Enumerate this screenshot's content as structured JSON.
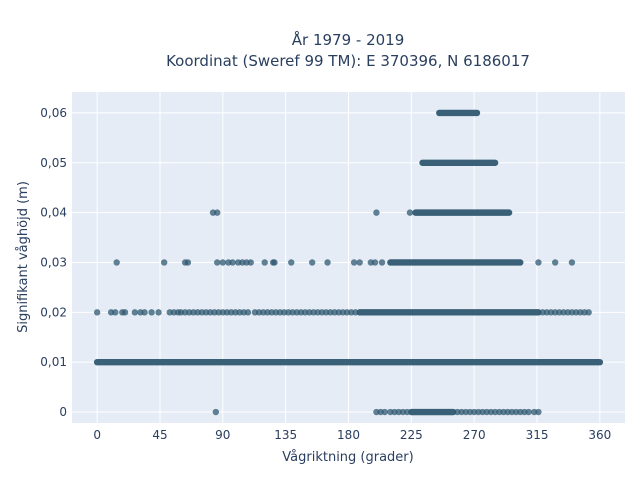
{
  "colors": {
    "plot_bg": "#e5ecf6",
    "grid": "#ffffff",
    "marker": "#2f5870",
    "text": "#2a3f5f",
    "page_bg": "#ffffff"
  },
  "chart_data": {
    "type": "scatter",
    "title_line1": "År 1979 - 2019",
    "title_line2": "Koordinat (Sweref 99 TM): E 370396, N 6186017",
    "xlabel": "Vågriktning (grader)",
    "ylabel": "Signifikant våghöjd (m)",
    "xlim": [
      -18,
      378
    ],
    "ylim": [
      -0.0022,
      0.0642
    ],
    "xticks": [
      0,
      45,
      90,
      135,
      180,
      225,
      270,
      315,
      360
    ],
    "xtick_labels": [
      "0",
      "45",
      "90",
      "135",
      "180",
      "225",
      "270",
      "315",
      "360"
    ],
    "yticks": [
      0,
      0.01,
      0.02,
      0.03,
      0.04,
      0.05,
      0.06
    ],
    "ytick_labels": [
      "0",
      "0,01",
      "0,02",
      "0,03",
      "0,04",
      "0,05",
      "0,06"
    ],
    "grid": true,
    "legend": "none",
    "marker_opacity": 0.75,
    "dense_bands": [
      {
        "y": 0.06,
        "x_min": 245,
        "x_max": 272
      },
      {
        "y": 0.05,
        "x_min": 233,
        "x_max": 285
      },
      {
        "y": 0.04,
        "x_min": 228,
        "x_max": 295
      },
      {
        "y": 0.03,
        "x_min": 210,
        "x_max": 303
      },
      {
        "y": 0.02,
        "x_min": 188,
        "x_max": 316
      },
      {
        "y": 0.01,
        "x_min": 0,
        "x_max": 360
      },
      {
        "y": 0.0,
        "x_min": 225,
        "x_max": 255
      }
    ],
    "points": [
      {
        "x": 83,
        "y": 0.04
      },
      {
        "x": 86,
        "y": 0.04
      },
      {
        "x": 200,
        "y": 0.04
      },
      {
        "x": 224,
        "y": 0.04
      },
      {
        "x": 14,
        "y": 0.03
      },
      {
        "x": 48,
        "y": 0.03
      },
      {
        "x": 63,
        "y": 0.03
      },
      {
        "x": 65,
        "y": 0.03
      },
      {
        "x": 86,
        "y": 0.03
      },
      {
        "x": 90,
        "y": 0.03
      },
      {
        "x": 94,
        "y": 0.03
      },
      {
        "x": 97,
        "y": 0.03
      },
      {
        "x": 101,
        "y": 0.03
      },
      {
        "x": 104,
        "y": 0.03
      },
      {
        "x": 107,
        "y": 0.03
      },
      {
        "x": 110,
        "y": 0.03
      },
      {
        "x": 120,
        "y": 0.03
      },
      {
        "x": 126,
        "y": 0.03
      },
      {
        "x": 127,
        "y": 0.03
      },
      {
        "x": 139,
        "y": 0.03
      },
      {
        "x": 154,
        "y": 0.03
      },
      {
        "x": 165,
        "y": 0.03
      },
      {
        "x": 184,
        "y": 0.03
      },
      {
        "x": 188,
        "y": 0.03
      },
      {
        "x": 196,
        "y": 0.03
      },
      {
        "x": 199,
        "y": 0.03
      },
      {
        "x": 204,
        "y": 0.03
      },
      {
        "x": 316,
        "y": 0.03
      },
      {
        "x": 328,
        "y": 0.03
      },
      {
        "x": 340,
        "y": 0.03
      },
      {
        "x": 0,
        "y": 0.02
      },
      {
        "x": 10,
        "y": 0.02
      },
      {
        "x": 13,
        "y": 0.02
      },
      {
        "x": 18,
        "y": 0.02
      },
      {
        "x": 20,
        "y": 0.02
      },
      {
        "x": 27,
        "y": 0.02
      },
      {
        "x": 31,
        "y": 0.02
      },
      {
        "x": 34,
        "y": 0.02
      },
      {
        "x": 39,
        "y": 0.02
      },
      {
        "x": 44,
        "y": 0.02
      },
      {
        "x": 52,
        "y": 0.02
      },
      {
        "x": 55,
        "y": 0.02
      },
      {
        "x": 58,
        "y": 0.02
      },
      {
        "x": 60,
        "y": 0.02
      },
      {
        "x": 63,
        "y": 0.02
      },
      {
        "x": 66,
        "y": 0.02
      },
      {
        "x": 69,
        "y": 0.02
      },
      {
        "x": 72,
        "y": 0.02
      },
      {
        "x": 75,
        "y": 0.02
      },
      {
        "x": 78,
        "y": 0.02
      },
      {
        "x": 81,
        "y": 0.02
      },
      {
        "x": 84,
        "y": 0.02
      },
      {
        "x": 87,
        "y": 0.02
      },
      {
        "x": 90,
        "y": 0.02
      },
      {
        "x": 93,
        "y": 0.02
      },
      {
        "x": 96,
        "y": 0.02
      },
      {
        "x": 99,
        "y": 0.02
      },
      {
        "x": 102,
        "y": 0.02
      },
      {
        "x": 105,
        "y": 0.02
      },
      {
        "x": 108,
        "y": 0.02
      },
      {
        "x": 113,
        "y": 0.02
      },
      {
        "x": 116,
        "y": 0.02
      },
      {
        "x": 119,
        "y": 0.02
      },
      {
        "x": 122,
        "y": 0.02
      },
      {
        "x": 125,
        "y": 0.02
      },
      {
        "x": 128,
        "y": 0.02
      },
      {
        "x": 131,
        "y": 0.02
      },
      {
        "x": 134,
        "y": 0.02
      },
      {
        "x": 137,
        "y": 0.02
      },
      {
        "x": 140,
        "y": 0.02
      },
      {
        "x": 143,
        "y": 0.02
      },
      {
        "x": 146,
        "y": 0.02
      },
      {
        "x": 149,
        "y": 0.02
      },
      {
        "x": 152,
        "y": 0.02
      },
      {
        "x": 155,
        "y": 0.02
      },
      {
        "x": 158,
        "y": 0.02
      },
      {
        "x": 161,
        "y": 0.02
      },
      {
        "x": 164,
        "y": 0.02
      },
      {
        "x": 167,
        "y": 0.02
      },
      {
        "x": 170,
        "y": 0.02
      },
      {
        "x": 173,
        "y": 0.02
      },
      {
        "x": 176,
        "y": 0.02
      },
      {
        "x": 179,
        "y": 0.02
      },
      {
        "x": 182,
        "y": 0.02
      },
      {
        "x": 185,
        "y": 0.02
      },
      {
        "x": 319,
        "y": 0.02
      },
      {
        "x": 322,
        "y": 0.02
      },
      {
        "x": 325,
        "y": 0.02
      },
      {
        "x": 328,
        "y": 0.02
      },
      {
        "x": 331,
        "y": 0.02
      },
      {
        "x": 334,
        "y": 0.02
      },
      {
        "x": 337,
        "y": 0.02
      },
      {
        "x": 340,
        "y": 0.02
      },
      {
        "x": 343,
        "y": 0.02
      },
      {
        "x": 346,
        "y": 0.02
      },
      {
        "x": 349,
        "y": 0.02
      },
      {
        "x": 352,
        "y": 0.02
      },
      {
        "x": 85,
        "y": 0.0
      },
      {
        "x": 200,
        "y": 0.0
      },
      {
        "x": 203,
        "y": 0.0
      },
      {
        "x": 206,
        "y": 0.0
      },
      {
        "x": 210,
        "y": 0.0
      },
      {
        "x": 213,
        "y": 0.0
      },
      {
        "x": 216,
        "y": 0.0
      },
      {
        "x": 219,
        "y": 0.0
      },
      {
        "x": 222,
        "y": 0.0
      },
      {
        "x": 258,
        "y": 0.0
      },
      {
        "x": 261,
        "y": 0.0
      },
      {
        "x": 264,
        "y": 0.0
      },
      {
        "x": 267,
        "y": 0.0
      },
      {
        "x": 270,
        "y": 0.0
      },
      {
        "x": 273,
        "y": 0.0
      },
      {
        "x": 276,
        "y": 0.0
      },
      {
        "x": 279,
        "y": 0.0
      },
      {
        "x": 282,
        "y": 0.0
      },
      {
        "x": 285,
        "y": 0.0
      },
      {
        "x": 288,
        "y": 0.0
      },
      {
        "x": 291,
        "y": 0.0
      },
      {
        "x": 294,
        "y": 0.0
      },
      {
        "x": 297,
        "y": 0.0
      },
      {
        "x": 300,
        "y": 0.0
      },
      {
        "x": 303,
        "y": 0.0
      },
      {
        "x": 306,
        "y": 0.0
      },
      {
        "x": 309,
        "y": 0.0
      },
      {
        "x": 313,
        "y": 0.0
      },
      {
        "x": 316,
        "y": 0.0
      }
    ]
  }
}
